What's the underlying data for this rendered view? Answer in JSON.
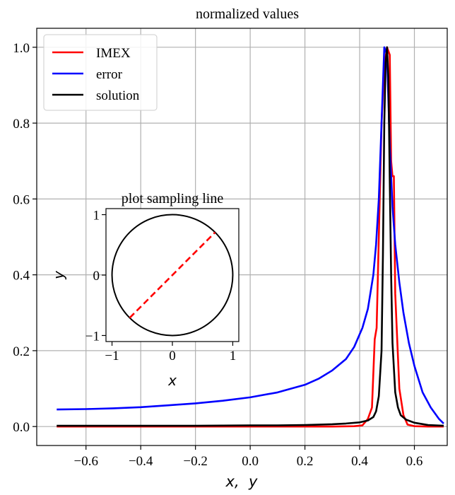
{
  "chart_data": [
    {
      "type": "line",
      "title": "normalized values",
      "xlabel": "x,  y",
      "ylabel": "",
      "xlim": [
        -0.78,
        0.72
      ],
      "ylim": [
        -0.05,
        1.05
      ],
      "xticks": [
        -0.6,
        -0.4,
        -0.2,
        0.0,
        0.2,
        0.4,
        0.6
      ],
      "xtick_labels": [
        "−0.6",
        "−0.4",
        "−0.2",
        "0.0",
        "0.2",
        "0.4",
        "0.6"
      ],
      "yticks": [
        0.0,
        0.2,
        0.4,
        0.6,
        0.8,
        1.0
      ],
      "ytick_labels": [
        "0.0",
        "0.2",
        "0.4",
        "0.6",
        "0.8",
        "1.0"
      ],
      "grid": true,
      "legend_position": "top-left",
      "series": [
        {
          "name": "IMEX",
          "color": "#ff0000",
          "x": [
            -0.707,
            -0.6,
            -0.4,
            -0.2,
            0.0,
            0.2,
            0.3,
            0.38,
            0.41,
            0.43,
            0.445,
            0.455,
            0.462,
            0.47,
            0.48,
            0.49,
            0.5,
            0.51,
            0.515,
            0.52,
            0.525,
            0.53,
            0.545,
            0.56,
            0.575,
            0.6,
            0.65,
            0.707
          ],
          "y": [
            0.0,
            0.0,
            0.0,
            0.0,
            0.0,
            0.0,
            0.0,
            0.001,
            0.003,
            0.02,
            0.05,
            0.23,
            0.26,
            0.5,
            0.8,
            0.95,
            1.0,
            0.98,
            0.7,
            0.66,
            0.66,
            0.35,
            0.1,
            0.03,
            0.005,
            0.001,
            0.0,
            0.0
          ]
        },
        {
          "name": "error",
          "color": "#0000ff",
          "x": [
            -0.707,
            -0.6,
            -0.5,
            -0.4,
            -0.3,
            -0.2,
            -0.1,
            0.0,
            0.1,
            0.2,
            0.25,
            0.3,
            0.35,
            0.38,
            0.41,
            0.43,
            0.45,
            0.46,
            0.47,
            0.48,
            0.49,
            0.5,
            0.51,
            0.52,
            0.53,
            0.545,
            0.56,
            0.58,
            0.6,
            0.63,
            0.66,
            0.69,
            0.707
          ],
          "y": [
            0.045,
            0.046,
            0.048,
            0.051,
            0.056,
            0.061,
            0.068,
            0.077,
            0.09,
            0.11,
            0.126,
            0.148,
            0.178,
            0.21,
            0.26,
            0.31,
            0.4,
            0.48,
            0.6,
            0.8,
            1.0,
            0.98,
            0.74,
            0.58,
            0.48,
            0.38,
            0.3,
            0.22,
            0.16,
            0.09,
            0.05,
            0.02,
            0.008
          ]
        },
        {
          "name": "solution",
          "color": "#000000",
          "x": [
            -0.707,
            -0.6,
            -0.4,
            -0.2,
            0.0,
            0.1,
            0.2,
            0.3,
            0.35,
            0.4,
            0.43,
            0.45,
            0.46,
            0.47,
            0.48,
            0.485,
            0.49,
            0.495,
            0.5,
            0.505,
            0.51,
            0.515,
            0.52,
            0.53,
            0.54,
            0.55,
            0.57,
            0.6,
            0.65,
            0.707
          ],
          "y": [
            0.002,
            0.002,
            0.002,
            0.002,
            0.003,
            0.003,
            0.004,
            0.006,
            0.008,
            0.011,
            0.016,
            0.025,
            0.04,
            0.08,
            0.2,
            0.45,
            0.8,
            0.96,
            1.0,
            0.92,
            0.65,
            0.4,
            0.22,
            0.09,
            0.05,
            0.03,
            0.018,
            0.01,
            0.004,
            0.002
          ]
        }
      ]
    },
    {
      "type": "line",
      "title": "plot sampling line",
      "xlabel": "x",
      "ylabel": "y",
      "xlim": [
        -1.1,
        1.1
      ],
      "ylim": [
        -1.1,
        1.1
      ],
      "xticks": [
        -1,
        0,
        1
      ],
      "xtick_labels": [
        "−1",
        "0",
        "1"
      ],
      "yticks": [
        -1,
        0,
        1
      ],
      "ytick_labels": [
        "−1",
        "0",
        "1"
      ],
      "grid": false,
      "shapes": [
        {
          "kind": "circle",
          "cx": 0,
          "cy": 0,
          "r": 1,
          "color": "#000000",
          "style": "solid"
        },
        {
          "kind": "segment",
          "from": [
            -0.707,
            -0.707
          ],
          "to": [
            0.707,
            0.707
          ],
          "color": "#ff0000",
          "style": "dashed"
        }
      ]
    }
  ]
}
